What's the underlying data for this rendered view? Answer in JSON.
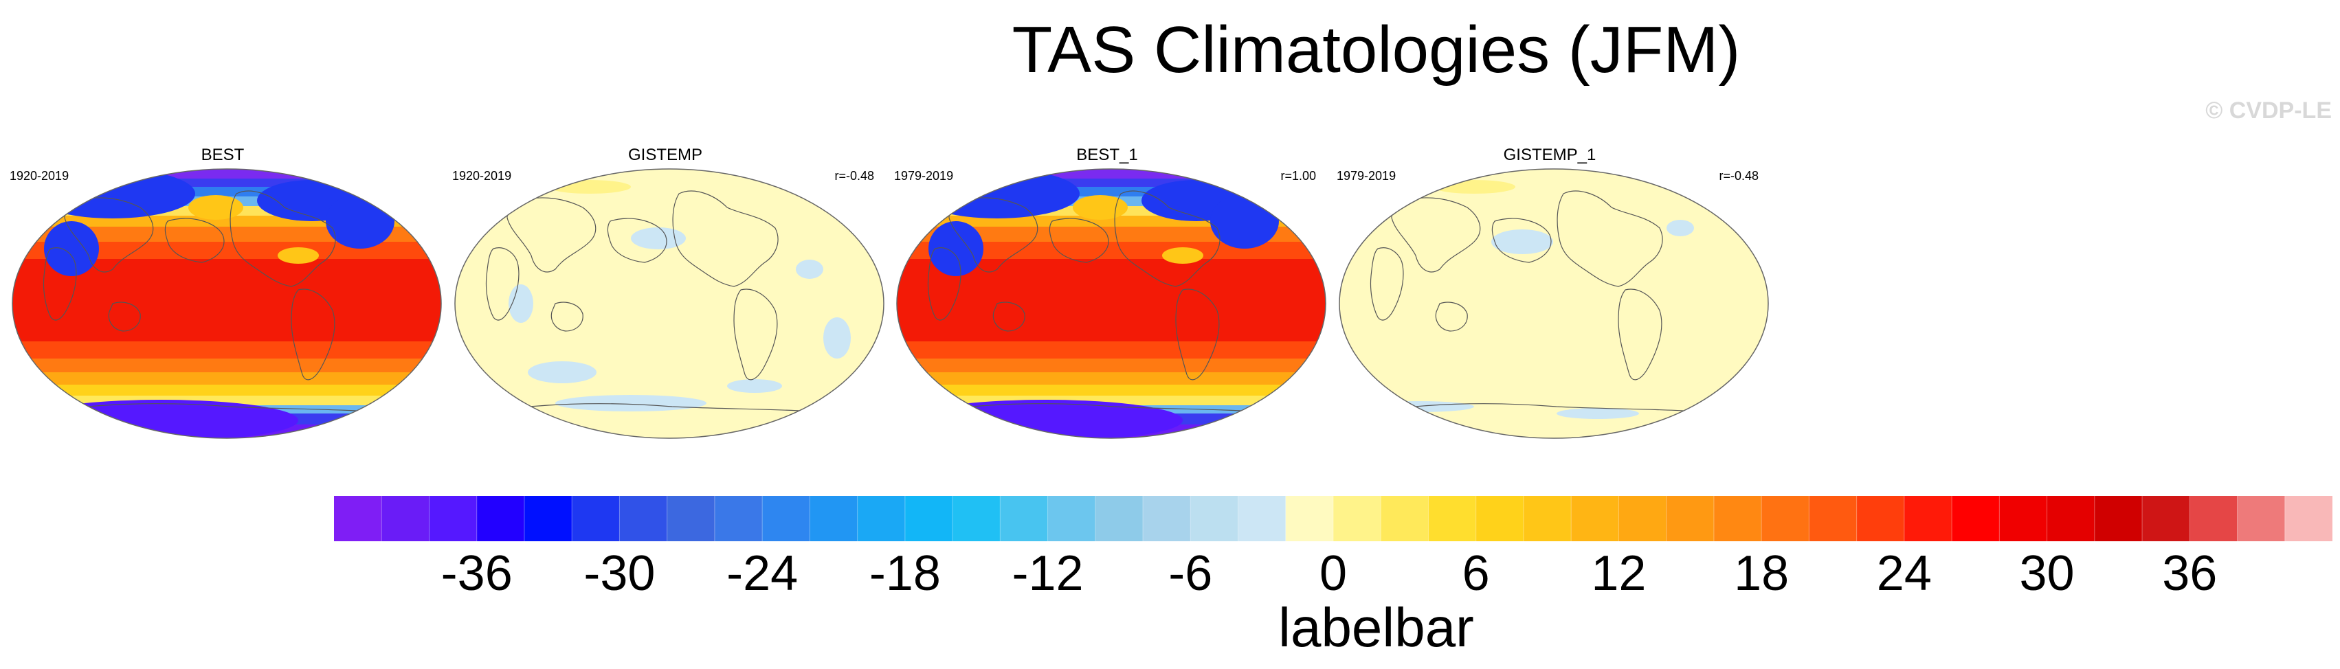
{
  "title": "TAS Climatologies (JFM)",
  "credit": "© CVDP-LE",
  "panels": [
    {
      "name": "BEST",
      "period": "1920-2019",
      "corr": "",
      "field": "full"
    },
    {
      "name": "GISTEMP",
      "period": "1920-2019",
      "corr": "r=-0.48",
      "field": "flat"
    },
    {
      "name": "BEST_1",
      "period": "1979-2019",
      "corr": "r=1.00",
      "field": "full"
    },
    {
      "name": "GISTEMP_1",
      "period": "1979-2019",
      "corr": "r=-0.48",
      "field": "flat"
    }
  ],
  "labelbar": {
    "title": "labelbar",
    "tick_labels": [
      "-36",
      "-30",
      "-24",
      "-18",
      "-12",
      "-6",
      "0",
      "6",
      "12",
      "18",
      "24",
      "30",
      "36"
    ],
    "colors": [
      "#7f1ef5",
      "#6a1cf7",
      "#5518ff",
      "#2200ff",
      "#0010ff",
      "#1e38f2",
      "#3052e8",
      "#3c68e0",
      "#3a78e8",
      "#2e86f0",
      "#2196f3",
      "#1aa8f5",
      "#12b6f7",
      "#20c0f4",
      "#48c4f0",
      "#6cc6ee",
      "#8ecbe9",
      "#a8d3ec",
      "#bcdff0",
      "#cce6f5",
      "#fffac0",
      "#fff38a",
      "#ffe95a",
      "#ffde2e",
      "#ffd21a",
      "#ffc617",
      "#ffb514",
      "#ffa812",
      "#ff9912",
      "#ff8812",
      "#ff7212",
      "#ff5a10",
      "#ff3e0c",
      "#ff1a08",
      "#ff0000",
      "#f00000",
      "#e40000",
      "#d00000",
      "#cf1515",
      "#e54646",
      "#ee7a7a",
      "#f9b8b8"
    ]
  }
}
